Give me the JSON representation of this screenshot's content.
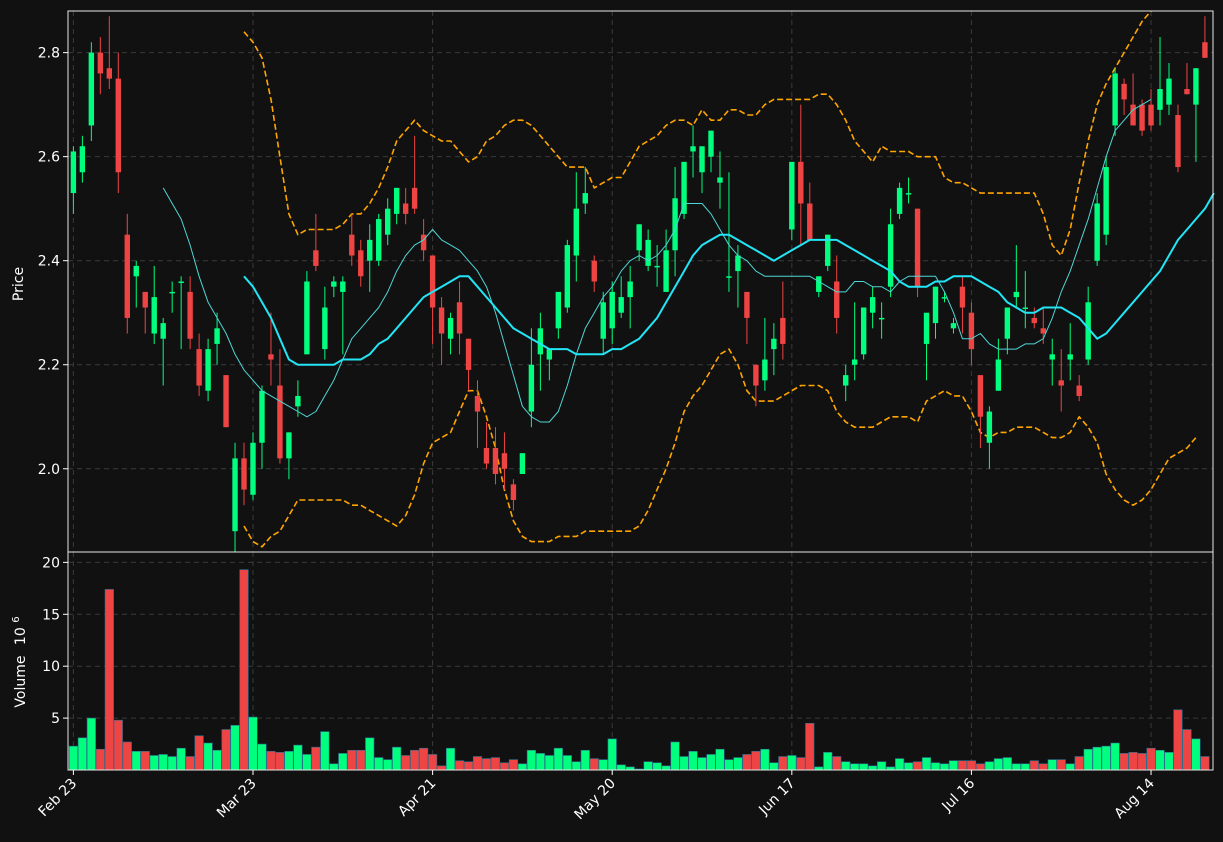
{
  "colors": {
    "background": "#111111",
    "up": "#00ff7f",
    "down": "#ef4444",
    "sma_long": "#22e5f5",
    "sma_short": "#4fd6d6",
    "bands": "#ffa500",
    "grid": "#3a3a3a"
  },
  "chart_data": {
    "type": "candlestick",
    "grid": true,
    "x_tick_labels": [
      "Feb 23",
      "Mar 23",
      "Apr 21",
      "May 20",
      "Jun 17",
      "Jul 16",
      "Aug 14"
    ],
    "x_tick_indices": [
      0,
      20,
      40,
      60,
      80,
      100,
      120
    ],
    "price_panel": {
      "ylabel": "Price",
      "ylim": [
        1.84,
        2.88
      ],
      "yticks": [
        "2.0",
        "2.2",
        "2.4",
        "2.6",
        "2.8"
      ]
    },
    "volume_panel": {
      "ylabel": "Volume",
      "ylabel_exponent": "10",
      "ylabel_exponent_power": "6",
      "ylim": [
        0,
        21.0
      ],
      "yticks": [
        "5",
        "10",
        "15",
        "20"
      ]
    },
    "ohlc": [
      [
        2.53,
        2.62,
        2.49,
        2.61
      ],
      [
        2.57,
        2.64,
        2.55,
        2.62
      ],
      [
        2.66,
        2.82,
        2.63,
        2.8
      ],
      [
        2.8,
        2.83,
        2.72,
        2.76
      ],
      [
        2.77,
        2.87,
        2.73,
        2.75
      ],
      [
        2.75,
        2.8,
        2.53,
        2.57
      ],
      [
        2.45,
        2.49,
        2.26,
        2.29
      ],
      [
        2.37,
        2.4,
        2.31,
        2.39
      ],
      [
        2.34,
        2.34,
        2.26,
        2.31
      ],
      [
        2.26,
        2.39,
        2.24,
        2.33
      ],
      [
        2.25,
        2.29,
        2.16,
        2.28
      ],
      [
        2.34,
        2.36,
        2.3,
        2.34
      ],
      [
        2.36,
        2.37,
        2.23,
        2.36
      ],
      [
        2.34,
        2.37,
        2.23,
        2.25
      ],
      [
        2.23,
        2.26,
        2.14,
        2.16
      ],
      [
        2.15,
        2.25,
        2.13,
        2.23
      ],
      [
        2.24,
        2.3,
        2.2,
        2.27
      ],
      [
        2.18,
        2.18,
        2.08,
        2.08
      ],
      [
        1.88,
        2.05,
        1.84,
        2.02
      ],
      [
        2.02,
        2.05,
        1.93,
        1.96
      ],
      [
        1.95,
        2.07,
        1.94,
        2.05
      ],
      [
        2.05,
        2.16,
        2.0,
        2.15
      ],
      [
        2.22,
        2.3,
        2.16,
        2.21
      ],
      [
        2.16,
        2.23,
        2.01,
        2.02
      ],
      [
        2.02,
        2.07,
        1.98,
        2.07
      ],
      [
        2.12,
        2.17,
        2.1,
        2.14
      ],
      [
        2.22,
        2.38,
        2.22,
        2.36
      ],
      [
        2.42,
        2.49,
        2.38,
        2.39
      ],
      [
        2.23,
        2.35,
        2.21,
        2.31
      ],
      [
        2.35,
        2.37,
        2.33,
        2.36
      ],
      [
        2.34,
        2.37,
        2.22,
        2.36
      ],
      [
        2.45,
        2.49,
        2.39,
        2.41
      ],
      [
        2.42,
        2.44,
        2.35,
        2.37
      ],
      [
        2.4,
        2.47,
        2.34,
        2.44
      ],
      [
        2.4,
        2.49,
        2.39,
        2.48
      ],
      [
        2.45,
        2.52,
        2.43,
        2.5
      ],
      [
        2.49,
        2.54,
        2.47,
        2.54
      ],
      [
        2.51,
        2.54,
        2.47,
        2.49
      ],
      [
        2.54,
        2.64,
        2.49,
        2.5
      ],
      [
        2.45,
        2.48,
        2.4,
        2.42
      ],
      [
        2.41,
        2.41,
        2.24,
        2.31
      ],
      [
        2.31,
        2.33,
        2.2,
        2.26
      ],
      [
        2.25,
        2.3,
        2.22,
        2.29
      ],
      [
        2.32,
        2.36,
        2.22,
        2.26
      ],
      [
        2.25,
        2.25,
        2.15,
        2.19
      ],
      [
        2.14,
        2.17,
        2.04,
        2.11
      ],
      [
        2.04,
        2.09,
        2.0,
        2.01
      ],
      [
        2.04,
        2.08,
        1.97,
        1.99
      ],
      [
        2.03,
        2.07,
        1.96,
        2.0
      ],
      [
        1.97,
        1.98,
        1.92,
        1.94
      ],
      [
        1.99,
        2.03,
        1.99,
        2.03
      ],
      [
        2.11,
        2.27,
        2.08,
        2.2
      ],
      [
        2.22,
        2.3,
        2.15,
        2.27
      ],
      [
        2.21,
        2.23,
        2.17,
        2.23
      ],
      [
        2.27,
        2.34,
        2.25,
        2.34
      ],
      [
        2.31,
        2.44,
        2.3,
        2.43
      ],
      [
        2.41,
        2.57,
        2.36,
        2.5
      ],
      [
        2.51,
        2.58,
        2.49,
        2.53
      ],
      [
        2.4,
        2.41,
        2.34,
        2.36
      ],
      [
        2.25,
        2.34,
        2.22,
        2.32
      ],
      [
        2.27,
        2.36,
        2.24,
        2.34
      ],
      [
        2.3,
        2.37,
        2.29,
        2.33
      ],
      [
        2.33,
        2.39,
        2.27,
        2.36
      ],
      [
        2.42,
        2.47,
        2.4,
        2.47
      ],
      [
        2.39,
        2.46,
        2.38,
        2.44
      ],
      [
        2.39,
        2.43,
        2.35,
        2.39
      ],
      [
        2.34,
        2.46,
        2.34,
        2.42
      ],
      [
        2.42,
        2.58,
        2.37,
        2.52
      ],
      [
        2.49,
        2.59,
        2.48,
        2.59
      ],
      [
        2.61,
        2.66,
        2.56,
        2.62
      ],
      [
        2.57,
        2.61,
        2.53,
        2.62
      ],
      [
        2.6,
        2.65,
        2.57,
        2.65
      ],
      [
        2.55,
        2.61,
        2.5,
        2.56
      ],
      [
        2.37,
        2.57,
        2.34,
        2.37
      ],
      [
        2.38,
        2.43,
        2.31,
        2.41
      ],
      [
        2.34,
        2.34,
        2.24,
        2.29
      ],
      [
        2.2,
        2.2,
        2.12,
        2.16
      ],
      [
        2.17,
        2.29,
        2.15,
        2.21
      ],
      [
        2.23,
        2.28,
        2.18,
        2.25
      ],
      [
        2.29,
        2.36,
        2.21,
        2.24
      ],
      [
        2.46,
        2.59,
        2.44,
        2.59
      ],
      [
        2.59,
        2.7,
        2.43,
        2.51
      ],
      [
        2.51,
        2.55,
        2.44,
        2.44
      ],
      [
        2.34,
        2.37,
        2.33,
        2.37
      ],
      [
        2.39,
        2.45,
        2.38,
        2.45
      ],
      [
        2.36,
        2.41,
        2.26,
        2.29
      ],
      [
        2.16,
        2.2,
        2.13,
        2.18
      ],
      [
        2.2,
        2.32,
        2.17,
        2.21
      ],
      [
        2.22,
        2.31,
        2.21,
        2.31
      ],
      [
        2.3,
        2.35,
        2.27,
        2.33
      ],
      [
        2.29,
        2.32,
        2.25,
        2.29
      ],
      [
        2.35,
        2.5,
        2.33,
        2.47
      ],
      [
        2.49,
        2.55,
        2.48,
        2.54
      ],
      [
        2.53,
        2.56,
        2.51,
        2.53
      ],
      [
        2.5,
        2.5,
        2.33,
        2.35
      ],
      [
        2.24,
        2.29,
        2.17,
        2.3
      ],
      [
        2.28,
        2.35,
        2.25,
        2.35
      ],
      [
        2.33,
        2.34,
        2.32,
        2.33
      ],
      [
        2.27,
        2.29,
        2.26,
        2.28
      ],
      [
        2.35,
        2.37,
        2.26,
        2.31
      ],
      [
        2.3,
        2.32,
        2.2,
        2.23
      ],
      [
        2.18,
        2.18,
        2.04,
        2.1
      ],
      [
        2.05,
        2.12,
        2.0,
        2.11
      ],
      [
        2.15,
        2.25,
        2.15,
        2.21
      ],
      [
        2.25,
        2.31,
        2.22,
        2.31
      ],
      [
        2.33,
        2.43,
        2.31,
        2.34
      ],
      [
        2.31,
        2.38,
        2.27,
        2.31
      ],
      [
        2.29,
        2.31,
        2.27,
        2.28
      ],
      [
        2.27,
        2.31,
        2.24,
        2.26
      ],
      [
        2.21,
        2.25,
        2.16,
        2.22
      ],
      [
        2.17,
        2.23,
        2.11,
        2.16
      ],
      [
        2.21,
        2.28,
        2.17,
        2.22
      ],
      [
        2.16,
        2.18,
        2.13,
        2.14
      ],
      [
        2.21,
        2.35,
        2.2,
        2.32
      ],
      [
        2.4,
        2.53,
        2.39,
        2.51
      ],
      [
        2.45,
        2.6,
        2.43,
        2.58
      ],
      [
        2.66,
        2.77,
        2.64,
        2.76
      ],
      [
        2.74,
        2.75,
        2.68,
        2.71
      ],
      [
        2.7,
        2.76,
        2.66,
        2.66
      ],
      [
        2.7,
        2.71,
        2.64,
        2.65
      ],
      [
        2.7,
        2.73,
        2.65,
        2.66
      ],
      [
        2.69,
        2.83,
        2.66,
        2.73
      ],
      [
        2.7,
        2.78,
        2.68,
        2.75
      ],
      [
        2.68,
        2.7,
        2.57,
        2.58
      ],
      [
        2.73,
        2.78,
        2.72,
        2.72
      ],
      [
        2.7,
        2.77,
        2.59,
        2.77
      ],
      [
        2.82,
        2.87,
        2.79,
        2.79
      ]
    ],
    "volume": [
      2.3,
      3.1,
      5.0,
      2.0,
      17.4,
      4.8,
      2.7,
      1.8,
      1.8,
      1.4,
      1.5,
      1.3,
      2.1,
      1.3,
      3.3,
      2.6,
      1.9,
      3.9,
      4.3,
      19.3,
      5.1,
      2.5,
      1.8,
      1.7,
      1.8,
      2.4,
      1.5,
      2.2,
      3.7,
      0.6,
      1.6,
      1.9,
      1.9,
      3.1,
      1.2,
      1.0,
      2.2,
      1.4,
      1.9,
      2.1,
      1.5,
      0.4,
      2.1,
      0.9,
      0.8,
      1.3,
      1.1,
      1.2,
      0.7,
      1.0,
      0.6,
      1.9,
      1.6,
      1.4,
      2.1,
      1.4,
      0.8,
      1.9,
      1.1,
      1.0,
      3.0,
      0.5,
      0.3,
      0.1,
      0.8,
      0.7,
      0.4,
      2.7,
      1.3,
      1.8,
      1.2,
      1.5,
      2.0,
      1.0,
      1.2,
      1.5,
      1.8,
      2.0,
      0.7,
      1.3,
      1.4,
      1.2,
      4.5,
      0.3,
      1.7,
      1.3,
      0.8,
      0.6,
      0.6,
      0.4,
      0.8,
      0.3,
      1.1,
      0.7,
      0.8,
      1.2,
      0.7,
      0.6,
      0.9,
      0.9,
      0.9,
      0.6,
      0.8,
      1.1,
      1.2,
      0.6,
      0.6,
      0.9,
      0.6,
      1.0,
      1.0,
      0.6,
      1.3,
      2.0,
      2.2,
      2.3,
      2.6,
      1.6,
      1.7,
      1.6,
      2.1,
      1.9,
      1.7,
      5.8,
      3.9,
      3.0,
      1.3
    ],
    "sma_short": [
      null,
      null,
      null,
      null,
      null,
      null,
      null,
      null,
      null,
      null,
      2.54,
      2.51,
      2.48,
      2.43,
      2.37,
      2.32,
      2.29,
      2.26,
      2.22,
      2.19,
      2.17,
      2.15,
      2.14,
      2.13,
      2.12,
      2.11,
      2.1,
      2.11,
      2.14,
      2.17,
      2.21,
      2.25,
      2.27,
      2.29,
      2.31,
      2.34,
      2.38,
      2.41,
      2.43,
      2.44,
      2.46,
      2.44,
      2.43,
      2.42,
      2.4,
      2.38,
      2.35,
      2.3,
      2.24,
      2.18,
      2.12,
      2.1,
      2.09,
      2.09,
      2.11,
      2.16,
      2.22,
      2.27,
      2.3,
      2.33,
      2.35,
      2.38,
      2.4,
      2.41,
      2.4,
      2.41,
      2.43,
      2.46,
      2.51,
      2.51,
      2.51,
      2.49,
      2.46,
      2.43,
      2.41,
      2.4,
      2.38,
      2.37,
      2.37,
      2.37,
      2.37,
      2.37,
      2.37,
      2.36,
      2.35,
      2.34,
      2.34,
      2.36,
      2.36,
      2.35,
      2.35,
      2.34,
      2.36,
      2.37,
      2.37,
      2.37,
      2.37,
      2.34,
      2.3,
      2.25,
      2.25,
      2.26,
      2.24,
      2.23,
      2.23,
      2.23,
      2.24,
      2.24,
      2.25,
      2.29,
      2.34,
      2.38,
      2.43,
      2.48,
      2.54,
      2.6,
      2.65,
      2.67,
      2.69,
      2.7,
      2.71
    ],
    "sma_long": [
      null,
      null,
      null,
      null,
      null,
      null,
      null,
      null,
      null,
      null,
      null,
      null,
      null,
      null,
      null,
      null,
      null,
      null,
      null,
      2.37,
      2.35,
      2.32,
      2.29,
      2.25,
      2.21,
      2.2,
      2.2,
      2.2,
      2.2,
      2.2,
      2.21,
      2.21,
      2.21,
      2.22,
      2.24,
      2.25,
      2.27,
      2.29,
      2.31,
      2.33,
      2.34,
      2.35,
      2.36,
      2.37,
      2.37,
      2.35,
      2.33,
      2.31,
      2.29,
      2.27,
      2.26,
      2.25,
      2.24,
      2.23,
      2.23,
      2.23,
      2.22,
      2.22,
      2.22,
      2.22,
      2.23,
      2.23,
      2.24,
      2.25,
      2.27,
      2.29,
      2.32,
      2.35,
      2.38,
      2.41,
      2.43,
      2.44,
      2.45,
      2.45,
      2.44,
      2.43,
      2.42,
      2.41,
      2.4,
      2.41,
      2.42,
      2.43,
      2.44,
      2.44,
      2.44,
      2.44,
      2.43,
      2.42,
      2.41,
      2.4,
      2.39,
      2.38,
      2.36,
      2.35,
      2.35,
      2.35,
      2.36,
      2.36,
      2.37,
      2.37,
      2.37,
      2.36,
      2.35,
      2.34,
      2.32,
      2.31,
      2.3,
      2.3,
      2.31,
      2.31,
      2.31,
      2.3,
      2.29,
      2.27,
      2.25,
      2.26,
      2.28,
      2.3,
      2.32,
      2.34,
      2.36,
      2.38,
      2.41,
      2.44,
      2.46,
      2.48,
      2.5,
      2.53
    ],
    "band_upper": [
      null,
      null,
      null,
      null,
      null,
      null,
      null,
      null,
      null,
      null,
      null,
      null,
      null,
      null,
      null,
      null,
      null,
      null,
      null,
      2.84,
      2.82,
      2.79,
      2.71,
      2.6,
      2.49,
      2.45,
      2.46,
      2.46,
      2.46,
      2.46,
      2.47,
      2.49,
      2.49,
      2.51,
      2.54,
      2.58,
      2.63,
      2.65,
      2.67,
      2.65,
      2.64,
      2.63,
      2.63,
      2.61,
      2.59,
      2.6,
      2.63,
      2.64,
      2.66,
      2.67,
      2.67,
      2.66,
      2.64,
      2.62,
      2.6,
      2.58,
      2.58,
      2.58,
      2.54,
      2.55,
      2.56,
      2.56,
      2.59,
      2.62,
      2.63,
      2.64,
      2.66,
      2.67,
      2.67,
      2.66,
      2.69,
      2.67,
      2.67,
      2.69,
      2.69,
      2.68,
      2.68,
      2.7,
      2.71,
      2.71,
      2.71,
      2.71,
      2.71,
      2.72,
      2.72,
      2.7,
      2.67,
      2.63,
      2.61,
      2.59,
      2.62,
      2.61,
      2.61,
      2.61,
      2.6,
      2.6,
      2.6,
      2.56,
      2.55,
      2.55,
      2.54,
      2.53,
      2.53,
      2.53,
      2.53,
      2.53,
      2.53,
      2.53,
      2.49,
      2.43,
      2.41,
      2.46,
      2.55,
      2.63,
      2.7,
      2.74,
      2.77,
      2.8,
      2.83,
      2.86,
      2.88
    ],
    "band_lower": [
      null,
      null,
      null,
      null,
      null,
      null,
      null,
      null,
      null,
      null,
      null,
      null,
      null,
      null,
      null,
      null,
      null,
      null,
      null,
      1.89,
      1.86,
      1.85,
      1.87,
      1.88,
      1.91,
      1.94,
      1.94,
      1.94,
      1.94,
      1.94,
      1.94,
      1.93,
      1.93,
      1.92,
      1.91,
      1.9,
      1.89,
      1.91,
      1.95,
      2.01,
      2.05,
      2.06,
      2.07,
      2.11,
      2.15,
      2.15,
      2.1,
      2.04,
      1.96,
      1.9,
      1.87,
      1.86,
      1.86,
      1.86,
      1.87,
      1.87,
      1.87,
      1.88,
      1.88,
      1.88,
      1.88,
      1.88,
      1.88,
      1.89,
      1.92,
      1.96,
      2.0,
      2.05,
      2.11,
      2.14,
      2.16,
      2.19,
      2.22,
      2.23,
      2.2,
      2.15,
      2.13,
      2.13,
      2.13,
      2.14,
      2.15,
      2.16,
      2.16,
      2.16,
      2.15,
      2.11,
      2.09,
      2.08,
      2.08,
      2.08,
      2.09,
      2.1,
      2.1,
      2.1,
      2.09,
      2.13,
      2.14,
      2.15,
      2.14,
      2.14,
      2.11,
      2.07,
      2.06,
      2.07,
      2.07,
      2.08,
      2.08,
      2.08,
      2.07,
      2.06,
      2.06,
      2.07,
      2.1,
      2.08,
      2.05,
      1.99,
      1.96,
      1.94,
      1.93,
      1.94,
      1.96,
      1.99,
      2.02,
      2.03,
      2.04,
      2.06
    ]
  }
}
